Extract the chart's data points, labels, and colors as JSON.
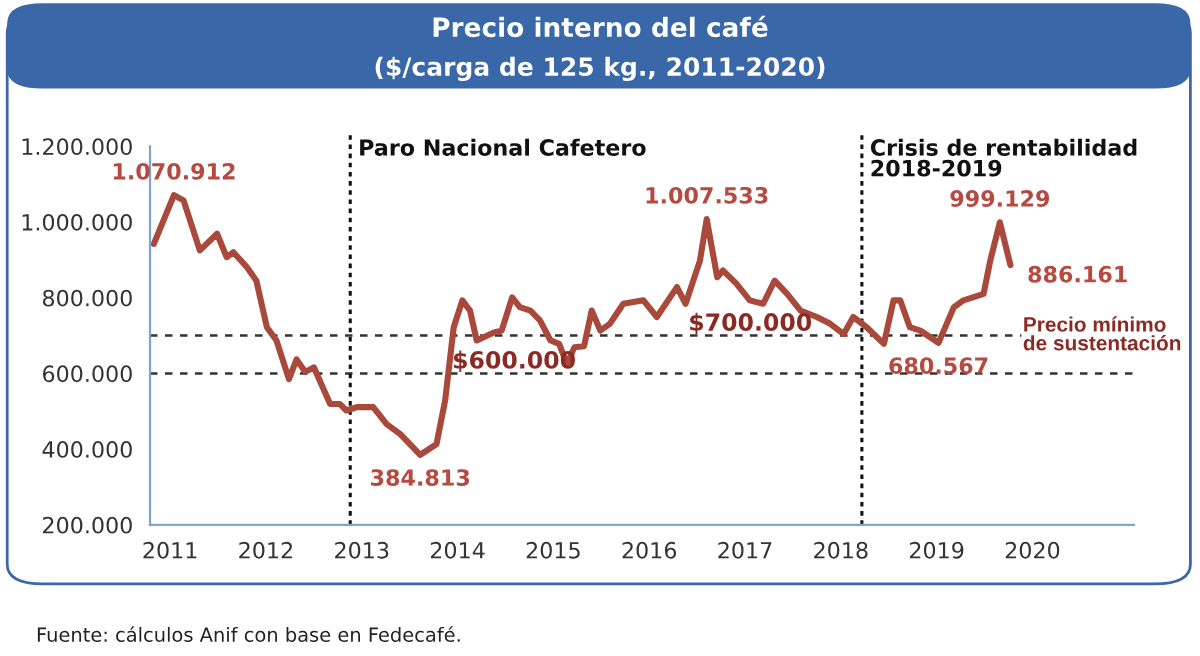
{
  "chart_data": {
    "type": "line",
    "title": "Precio interno del café",
    "subtitle": "($/carga de 125 kg., 2011-2020)",
    "x": [
      2010.83,
      2011.04,
      2011.14,
      2011.31,
      2011.49,
      2011.59,
      2011.66,
      2011.8,
      2011.9,
      2012.01,
      2012.11,
      2012.24,
      2012.32,
      2012.41,
      2012.5,
      2012.67,
      2012.77,
      2012.84,
      2012.95,
      2013.12,
      2013.26,
      2013.4,
      2013.61,
      2013.78,
      2013.87,
      2013.96,
      2014.05,
      2014.13,
      2014.2,
      2014.38,
      2014.46,
      2014.57,
      2014.65,
      2014.76,
      2014.86,
      2014.97,
      2015.06,
      2015.14,
      2015.22,
      2015.32,
      2015.4,
      2015.49,
      2015.59,
      2015.73,
      2015.94,
      2016.08,
      2016.29,
      2016.38,
      2016.53,
      2016.6,
      2016.71,
      2016.77,
      2016.91,
      2017.05,
      2017.19,
      2017.31,
      2017.44,
      2017.58,
      2017.75,
      2017.89,
      2018.03,
      2018.13,
      2018.27,
      2018.45,
      2018.55,
      2018.62,
      2018.72,
      2018.83,
      2019.02,
      2019.18,
      2019.28,
      2019.49,
      2019.56,
      2019.66,
      2019.77
    ],
    "series": [
      {
        "color": "#a9493c",
        "values": [
          942000,
          1070912,
          1057000,
          925000,
          969000,
          907000,
          920000,
          881000,
          845000,
          722000,
          687000,
          585000,
          637000,
          604000,
          616000,
          519000,
          519000,
          502000,
          511000,
          511000,
          466000,
          440000,
          384813,
          413000,
          528000,
          722000,
          793000,
          766000,
          687000,
          708000,
          713000,
          801000,
          775000,
          766000,
          740000,
          687000,
          678000,
          625000,
          669000,
          672000,
          766000,
          713000,
          731000,
          784000,
          793000,
          749000,
          828000,
          784000,
          898000,
          1007533,
          854000,
          872000,
          837000,
          793000,
          784000,
          845000,
          810000,
          766000,
          749000,
          731000,
          704000,
          749000,
          722000,
          678000,
          793000,
          793000,
          722000,
          713000,
          680567,
          775000,
          793000,
          810000,
          898000,
          999129,
          886161
        ]
      }
    ],
    "xlim": [
      2010.79,
      2021.06
    ],
    "xticks": [
      2011,
      2012,
      2013,
      2014,
      2015,
      2016,
      2017,
      2018,
      2019,
      2020
    ],
    "ylim": [
      200000,
      1200000
    ],
    "yticks": [
      {
        "value": 200000,
        "label": "200.000"
      },
      {
        "value": 400000,
        "label": "400.000"
      },
      {
        "value": 600000,
        "label": "600.000"
      },
      {
        "value": 800000,
        "label": "800.000"
      },
      {
        "value": 1000000,
        "label": "1.000.000"
      },
      {
        "value": 1200000,
        "label": "1.200.000"
      }
    ],
    "grid": false,
    "legend": false,
    "line_style": "solid",
    "ref_lines": [
      {
        "axis": "y",
        "value": 600000,
        "label": "$600.000",
        "line_style": "dashed",
        "color": "#333333"
      },
      {
        "axis": "y",
        "value": 700000,
        "label": "$700.000",
        "line_style": "dashed",
        "color": "#333333"
      },
      {
        "axis": "x",
        "value": 2012.88,
        "label": "Paro Nacional Cafetero",
        "line_style": "dotted",
        "color": "#111111"
      },
      {
        "axis": "x",
        "value": 2018.22,
        "label": "Crisis de rentabilidad\n2018-2019",
        "line_style": "dotted",
        "color": "#111111"
      }
    ],
    "annotations": [
      {
        "text": "1.070.912",
        "x": 2011.04,
        "y": 1070912
      },
      {
        "text": "384.813",
        "x": 2013.61,
        "y": 384813
      },
      {
        "text": "1.007.533",
        "x": 2016.6,
        "y": 1007533
      },
      {
        "text": "680.567",
        "x": 2019.02,
        "y": 680567
      },
      {
        "text": "999.129",
        "x": 2019.66,
        "y": 999129
      },
      {
        "text": "886.161",
        "x": 2019.77,
        "y": 886161
      },
      {
        "text": "Precio mínimo\nde sustentación",
        "x": 2019.9,
        "y": 700000
      },
      "Fuente: cálculos Anif con base en Fedecafé."
    ]
  }
}
